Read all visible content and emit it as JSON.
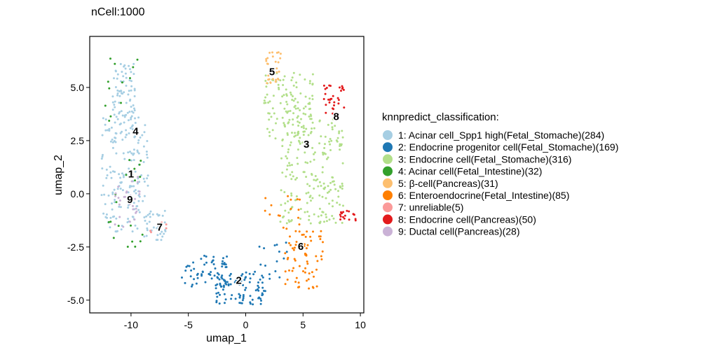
{
  "chart_data": {
    "type": "scatter",
    "title": "nCell:1000",
    "xlabel": "umap_1",
    "ylabel": "umap_2",
    "xlim": [
      -13.6,
      10.3
    ],
    "ylim": [
      -5.6,
      7.4
    ],
    "xticks": [
      {
        "value": -10,
        "label": "-10"
      },
      {
        "value": -5,
        "label": "-5"
      },
      {
        "value": 0,
        "label": "0"
      },
      {
        "value": 5,
        "label": "5"
      },
      {
        "value": 10,
        "label": "10"
      }
    ],
    "yticks": [
      {
        "value": -5,
        "label": "-5.0"
      },
      {
        "value": -2.5,
        "label": "-2.5"
      },
      {
        "value": 0,
        "label": "0.0"
      },
      {
        "value": 2.5,
        "label": "2.5"
      },
      {
        "value": 5,
        "label": "5.0"
      }
    ],
    "grid": false,
    "legend": {
      "title": "knnpredict_classification:",
      "position": "right",
      "entries": [
        {
          "label": "1: Acinar cell_Spp1 high(Fetal_Stomache)(284)",
          "color": "#a6cee3"
        },
        {
          "label": "2: Endocrine progenitor cell(Fetal_Stomache)(169)",
          "color": "#1f78b4"
        },
        {
          "label": "3: Endocrine cell(Fetal_Stomache)(316)",
          "color": "#b2df8a"
        },
        {
          "label": "4: Acinar cell(Fetal_Intestine)(32)",
          "color": "#33a02c"
        },
        {
          "label": "5: β-cell(Pancreas)(31)",
          "color": "#fdbf6f"
        },
        {
          "label": "6: Enteroendocrine(Fetal_Intestine)(85)",
          "color": "#ff7f00"
        },
        {
          "label": "7: unreliable(5)",
          "color": "#fb9a99"
        },
        {
          "label": "8: Endocrine cell(Pancreas)(50)",
          "color": "#e31a1c"
        },
        {
          "label": "9: Ductal cell(Pancreas)(28)",
          "color": "#cab2d6"
        }
      ]
    },
    "clusters": [
      {
        "id": 1,
        "label": "1",
        "color": "#a6cee3",
        "count": 284,
        "label_pos": [
          -10.0,
          0.9
        ],
        "regions": [
          {
            "x": [
              -12.6,
              -8.5
            ],
            "y": [
              -1.8,
              3.6
            ],
            "n": 180
          },
          {
            "x": [
              -11.6,
              -9.6
            ],
            "y": [
              3.6,
              6.2
            ],
            "n": 70
          },
          {
            "x": [
              -9.0,
              -6.8
            ],
            "y": [
              -2.2,
              -0.8
            ],
            "n": 34
          }
        ]
      },
      {
        "id": 2,
        "label": "2",
        "color": "#1f78b4",
        "count": 169,
        "label_pos": [
          -0.6,
          -4.1
        ],
        "regions": [
          {
            "x": [
              -5.6,
              -1.6
            ],
            "y": [
              -4.4,
              -2.9
            ],
            "n": 60
          },
          {
            "x": [
              -2.6,
              1.8
            ],
            "y": [
              -5.2,
              -3.6
            ],
            "n": 90
          },
          {
            "x": [
              1.0,
              3.6
            ],
            "y": [
              -4.6,
              -2.2
            ],
            "n": 19
          }
        ]
      },
      {
        "id": 3,
        "label": "3",
        "color": "#b2df8a",
        "count": 316,
        "label_pos": [
          5.3,
          2.3
        ],
        "regions": [
          {
            "x": [
              1.6,
              6.0
            ],
            "y": [
              2.6,
              5.8
            ],
            "n": 120
          },
          {
            "x": [
              3.0,
              8.5
            ],
            "y": [
              -1.4,
              3.6
            ],
            "n": 196
          }
        ]
      },
      {
        "id": 4,
        "label": "4",
        "color": "#33a02c",
        "count": 32,
        "label_pos": [
          -9.6,
          2.9
        ],
        "regions": [
          {
            "x": [
              -12.4,
              -8.8
            ],
            "y": [
              -2.6,
              6.4
            ],
            "n": 32
          }
        ]
      },
      {
        "id": 5,
        "label": "5",
        "color": "#fdbf6f",
        "count": 31,
        "label_pos": [
          2.3,
          5.7
        ],
        "regions": [
          {
            "x": [
              1.7,
              3.1
            ],
            "y": [
              5.2,
              6.7
            ],
            "n": 31
          }
        ]
      },
      {
        "id": 6,
        "label": "6",
        "color": "#ff7f00",
        "count": 85,
        "label_pos": [
          4.8,
          -2.5
        ],
        "regions": [
          {
            "x": [
              1.6,
              4.8
            ],
            "y": [
              -1.6,
              0.0
            ],
            "n": 15
          },
          {
            "x": [
              3.4,
              6.8
            ],
            "y": [
              -4.5,
              -1.6
            ],
            "n": 70
          }
        ]
      },
      {
        "id": 7,
        "label": "7",
        "color": "#fb9a99",
        "count": 5,
        "label_pos": [
          -7.5,
          -1.6
        ],
        "regions": [
          {
            "x": [
              -8.6,
              -6.6
            ],
            "y": [
              -2.0,
              -1.2
            ],
            "n": 5
          }
        ]
      },
      {
        "id": 8,
        "label": "8",
        "color": "#e31a1c",
        "count": 50,
        "label_pos": [
          7.9,
          3.6
        ],
        "regions": [
          {
            "x": [
              6.8,
              8.6
            ],
            "y": [
              3.6,
              5.3
            ],
            "n": 32
          },
          {
            "x": [
              8.2,
              9.6
            ],
            "y": [
              -1.3,
              -0.8
            ],
            "n": 18
          }
        ]
      },
      {
        "id": 9,
        "label": "9",
        "color": "#cab2d6",
        "count": 28,
        "label_pos": [
          -10.1,
          -0.3
        ],
        "regions": [
          {
            "x": [
              -11.4,
              -9.0
            ],
            "y": [
              -1.8,
              0.9
            ],
            "n": 28
          }
        ]
      }
    ]
  }
}
